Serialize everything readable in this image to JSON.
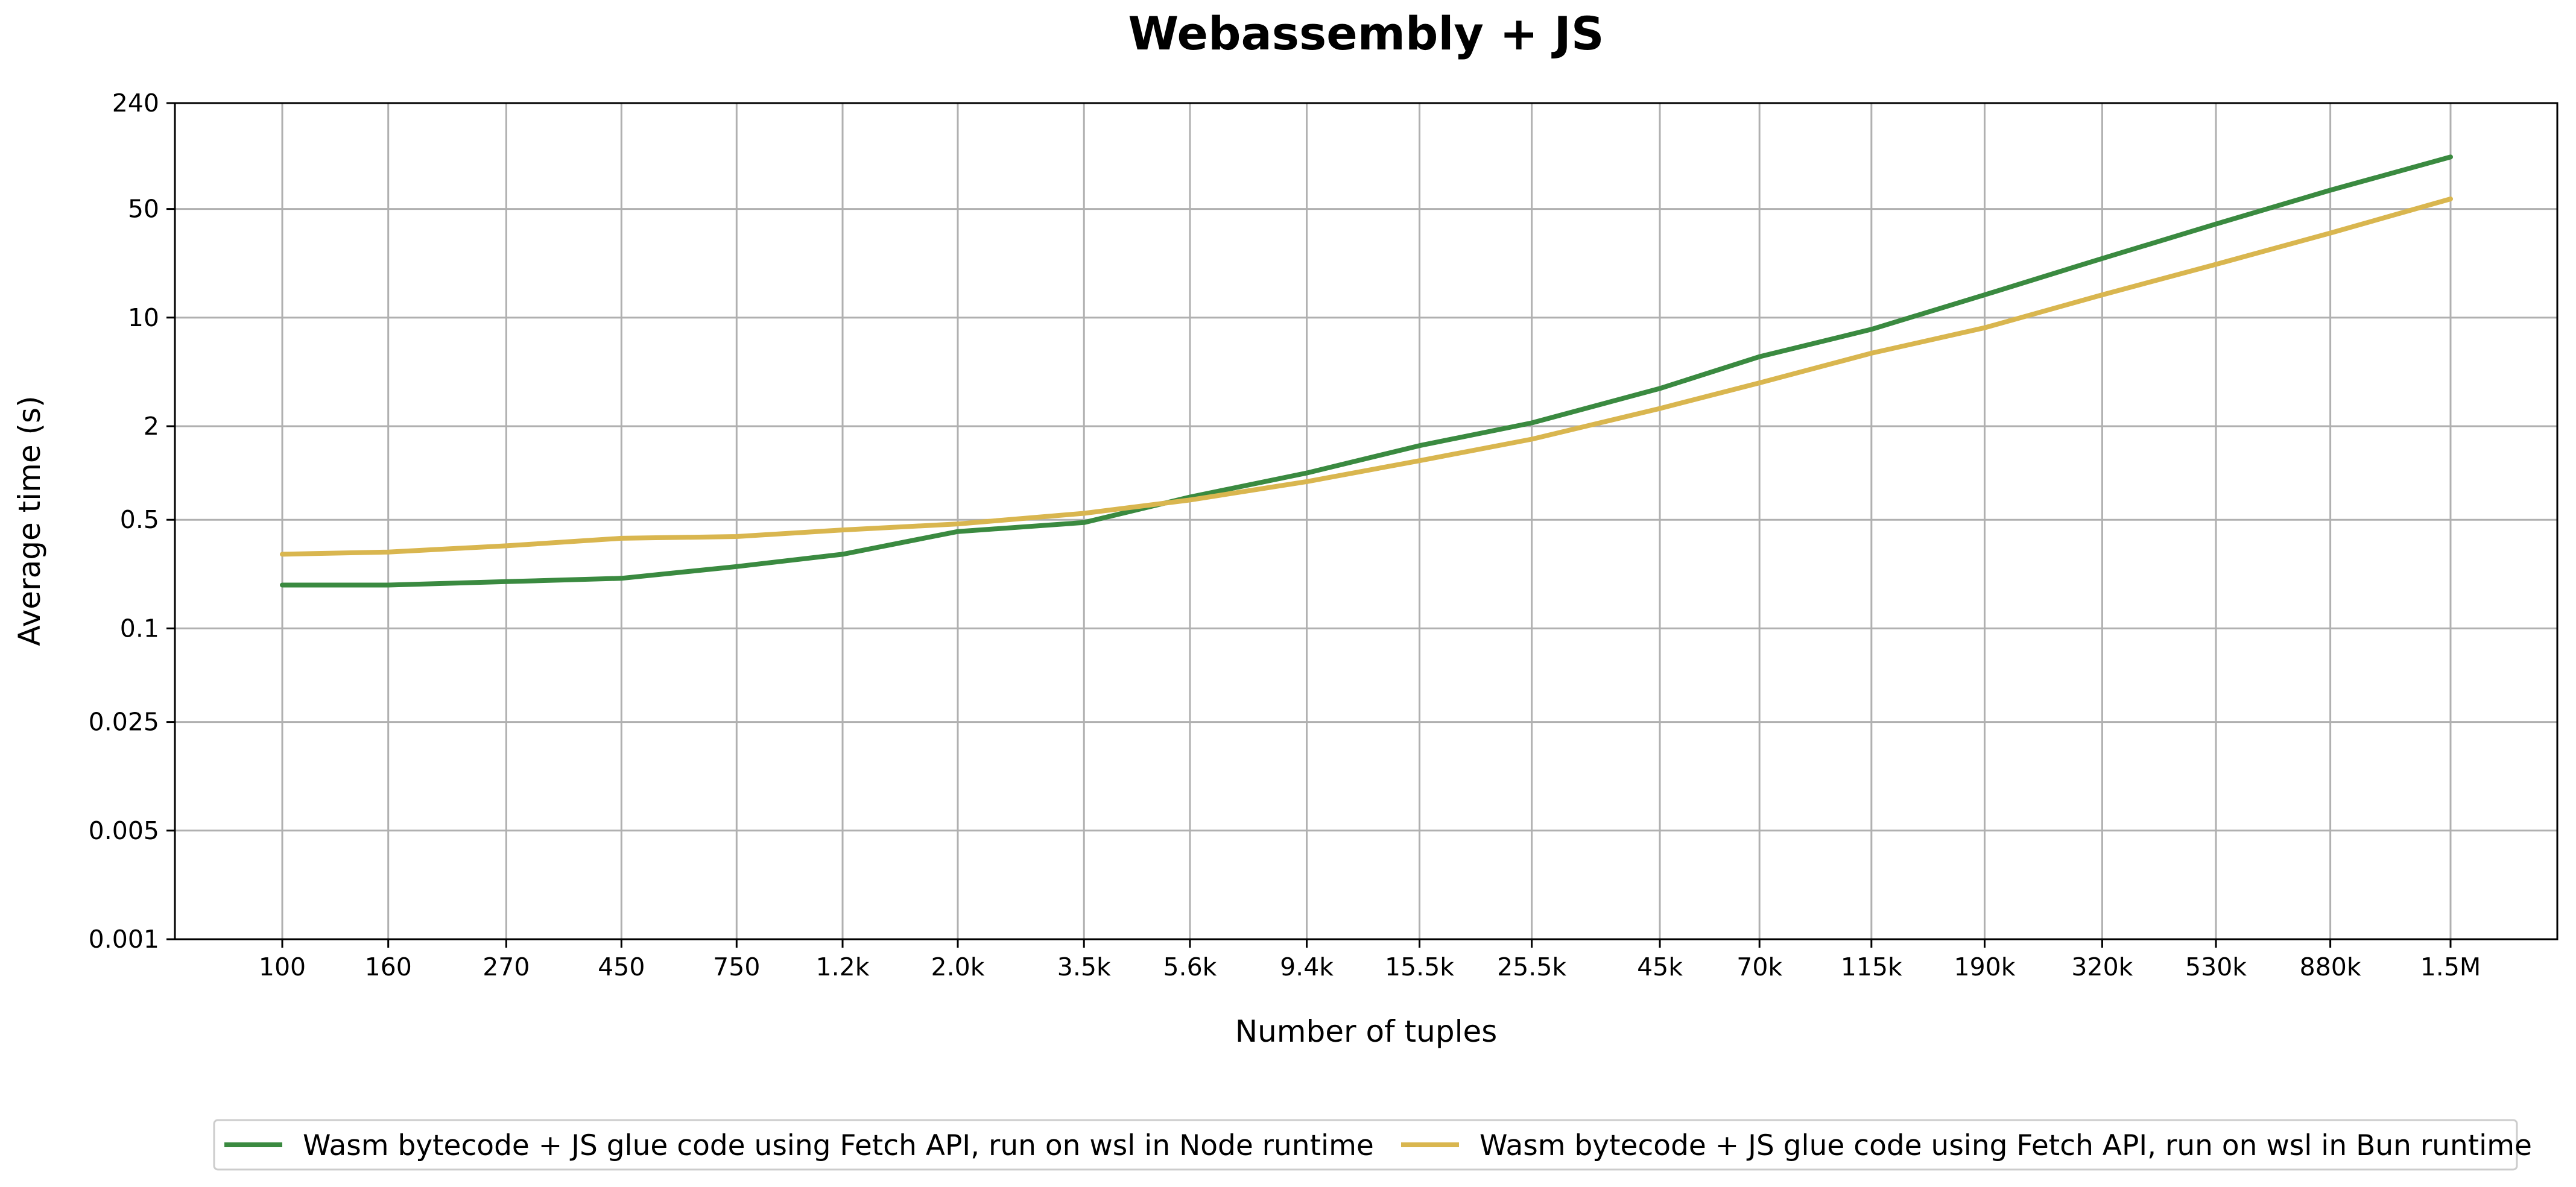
{
  "chart_data": {
    "type": "line",
    "title": "Webassembly + JS",
    "xlabel": "Number of tuples",
    "ylabel": "Average time (s)",
    "y_scale": "log",
    "ylim": [
      0.001,
      240
    ],
    "yticks": [
      0.001,
      0.005,
      0.025,
      0.1,
      0.5,
      2,
      10,
      50,
      240
    ],
    "ytick_labels": [
      "0.001",
      "0.005",
      "0.025",
      "0.1",
      "0.5",
      "2",
      "10",
      "50",
      "240"
    ],
    "categories": [
      "100",
      "160",
      "270",
      "450",
      "750",
      "1.2k",
      "2.0k",
      "3.5k",
      "5.6k",
      "9.4k",
      "15.5k",
      "25.5k",
      "45k",
      "70k",
      "115k",
      "190k",
      "320k",
      "530k",
      "880k",
      "1.5M"
    ],
    "x": [
      100,
      160,
      270,
      450,
      750,
      1200,
      2000,
      3500,
      5600,
      9400,
      15500,
      25500,
      45000,
      70000,
      115000,
      190000,
      320000,
      530000,
      880000,
      1500000
    ],
    "x_scale": "log",
    "grid": true,
    "legend_position": "bottom",
    "series": [
      {
        "name": "Wasm bytecode + JS glue code using Fetch API, run on wsl in Node runtime",
        "color": "#3a8a40",
        "values": [
          0.19,
          0.19,
          0.2,
          0.21,
          0.25,
          0.3,
          0.42,
          0.48,
          0.7,
          1.0,
          1.5,
          2.1,
          3.5,
          5.6,
          8.4,
          14,
          24,
          40,
          66,
          108
        ]
      },
      {
        "name": "Wasm bytecode + JS glue code using Fetch API, run on wsl in Bun runtime",
        "color": "#d9b64f",
        "values": [
          0.3,
          0.31,
          0.34,
          0.38,
          0.39,
          0.43,
          0.47,
          0.55,
          0.67,
          0.88,
          1.2,
          1.65,
          2.6,
          3.8,
          5.9,
          8.6,
          14,
          22,
          35,
          58
        ]
      }
    ]
  }
}
